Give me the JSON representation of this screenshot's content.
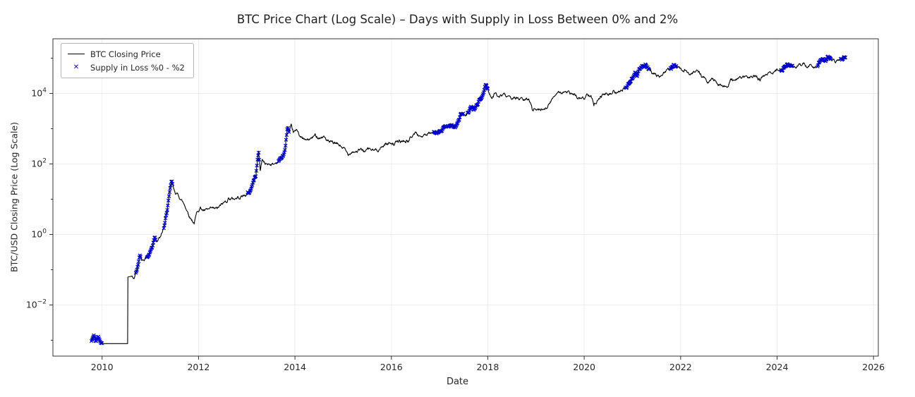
{
  "chart_data": {
    "type": "line",
    "title": "BTC Price Chart (Log Scale) – Days with Supply in Loss Between 0% and 2%",
    "xlabel": "Date",
    "ylabel": "BTC/USD Closing Price (Log Scale)",
    "grid": true,
    "legend_position": "upper-left",
    "x_ticks": [
      2010,
      2012,
      2014,
      2016,
      2018,
      2020,
      2022,
      2024,
      2026
    ],
    "y_ticks_exp": [
      -2,
      0,
      2,
      4
    ],
    "y_minor_decades": [
      -3,
      -2,
      -1,
      0,
      1,
      2,
      3,
      4,
      5
    ],
    "xlim": [
      2008.98,
      2026.1
    ],
    "ylim_log10": [
      -3.45,
      5.55
    ],
    "colors": {
      "line": "#000000",
      "marker": "#0000cc",
      "grid": "#e8e8e8",
      "spine": "#333333",
      "text": "#262626"
    },
    "series": [
      {
        "name": "BTC Closing Price",
        "type": "line",
        "color": "#000000",
        "anchors": [
          [
            2009.78,
            0.00095
          ],
          [
            2009.83,
            0.0014
          ],
          [
            2009.87,
            0.0009
          ],
          [
            2009.92,
            0.0013
          ],
          [
            2009.97,
            0.00085
          ],
          [
            2010.02,
            0.0008
          ],
          [
            2010.53,
            0.0008
          ],
          [
            2010.536,
            0.062
          ],
          [
            2010.6,
            0.065
          ],
          [
            2010.66,
            0.058
          ],
          [
            2010.72,
            0.095
          ],
          [
            2010.78,
            0.24
          ],
          [
            2010.83,
            0.19
          ],
          [
            2010.9,
            0.22
          ],
          [
            2010.97,
            0.27
          ],
          [
            2011.04,
            0.45
          ],
          [
            2011.09,
            0.95
          ],
          [
            2011.13,
            0.72
          ],
          [
            2011.22,
            0.86
          ],
          [
            2011.3,
            1.8
          ],
          [
            2011.37,
            7.5
          ],
          [
            2011.44,
            30
          ],
          [
            2011.49,
            17
          ],
          [
            2011.54,
            14.5
          ],
          [
            2011.62,
            11
          ],
          [
            2011.73,
            6.2
          ],
          [
            2011.83,
            3.1
          ],
          [
            2011.91,
            2.2
          ],
          [
            2011.98,
            4.7
          ],
          [
            2012.04,
            5.9
          ],
          [
            2012.12,
            4.6
          ],
          [
            2012.25,
            4.9
          ],
          [
            2012.38,
            5.1
          ],
          [
            2012.47,
            6.5
          ],
          [
            2012.58,
            8.9
          ],
          [
            2012.63,
            11.2
          ],
          [
            2012.7,
            10.1
          ],
          [
            2012.8,
            11.0
          ],
          [
            2012.9,
            12.4
          ],
          [
            2012.99,
            13.4
          ],
          [
            2013.06,
            15.5
          ],
          [
            2013.12,
            27
          ],
          [
            2013.19,
            49
          ],
          [
            2013.245,
            233
          ],
          [
            2013.28,
            68
          ],
          [
            2013.32,
            140
          ],
          [
            2013.38,
            98
          ],
          [
            2013.47,
            105
          ],
          [
            2013.56,
            97
          ],
          [
            2013.65,
            120
          ],
          [
            2013.73,
            155
          ],
          [
            2013.79,
            210
          ],
          [
            2013.845,
            1120
          ],
          [
            2013.88,
            700
          ],
          [
            2013.92,
            1020
          ],
          [
            2013.97,
            735
          ],
          [
            2014.02,
            810
          ],
          [
            2014.06,
            835
          ],
          [
            2014.13,
            560
          ],
          [
            2014.22,
            450
          ],
          [
            2014.32,
            495
          ],
          [
            2014.42,
            625
          ],
          [
            2014.5,
            590
          ],
          [
            2014.6,
            600
          ],
          [
            2014.72,
            390
          ],
          [
            2014.83,
            365
          ],
          [
            2014.93,
            330
          ],
          [
            2015.02,
            270
          ],
          [
            2015.06,
            215
          ],
          [
            2015.1,
            178
          ],
          [
            2015.18,
            245
          ],
          [
            2015.27,
            236
          ],
          [
            2015.36,
            247
          ],
          [
            2015.46,
            230
          ],
          [
            2015.54,
            263
          ],
          [
            2015.64,
            232
          ],
          [
            2015.73,
            265
          ],
          [
            2015.82,
            310
          ],
          [
            2015.88,
            400
          ],
          [
            2015.92,
            360
          ],
          [
            2015.99,
            432
          ],
          [
            2016.06,
            375
          ],
          [
            2016.14,
            417
          ],
          [
            2016.25,
            435
          ],
          [
            2016.36,
            455
          ],
          [
            2016.45,
            665
          ],
          [
            2016.5,
            770
          ],
          [
            2016.55,
            660
          ],
          [
            2016.63,
            610
          ],
          [
            2016.72,
            640
          ],
          [
            2016.82,
            700
          ],
          [
            2016.9,
            745
          ],
          [
            2016.99,
            965
          ],
          [
            2017.04,
            890
          ],
          [
            2017.1,
            1070
          ],
          [
            2017.16,
            1190
          ],
          [
            2017.22,
            1040
          ],
          [
            2017.3,
            1230
          ],
          [
            2017.37,
            1320
          ],
          [
            2017.44,
            2550
          ],
          [
            2017.49,
            2450
          ],
          [
            2017.54,
            1990
          ],
          [
            2017.6,
            2650
          ],
          [
            2017.66,
            4350
          ],
          [
            2017.7,
            3250
          ],
          [
            2017.76,
            4380
          ],
          [
            2017.82,
            6100
          ],
          [
            2017.87,
            7300
          ],
          [
            2017.92,
            11200
          ],
          [
            2017.96,
            19100
          ],
          [
            2018.0,
            13600
          ],
          [
            2018.04,
            10300
          ],
          [
            2018.09,
            7000
          ],
          [
            2018.16,
            11400
          ],
          [
            2018.24,
            6900
          ],
          [
            2018.31,
            9250
          ],
          [
            2018.4,
            7500
          ],
          [
            2018.48,
            6200
          ],
          [
            2018.56,
            8250
          ],
          [
            2018.64,
            7000
          ],
          [
            2018.74,
            6450
          ],
          [
            2018.85,
            6400
          ],
          [
            2018.89,
            5600
          ],
          [
            2018.92,
            3900
          ],
          [
            2018.99,
            3750
          ],
          [
            2019.08,
            3420
          ],
          [
            2019.18,
            3950
          ],
          [
            2019.28,
            5150
          ],
          [
            2019.37,
            7900
          ],
          [
            2019.46,
            12900
          ],
          [
            2019.52,
            10700
          ],
          [
            2019.57,
            11900
          ],
          [
            2019.65,
            10200
          ],
          [
            2019.74,
            9500
          ],
          [
            2019.82,
            8200
          ],
          [
            2019.91,
            7250
          ],
          [
            2020.0,
            7200
          ],
          [
            2020.07,
            9350
          ],
          [
            2020.14,
            10300
          ],
          [
            2020.2,
            4950
          ],
          [
            2020.27,
            6900
          ],
          [
            2020.34,
            8800
          ],
          [
            2020.41,
            9650
          ],
          [
            2020.49,
            9150
          ],
          [
            2020.56,
            9250
          ],
          [
            2020.62,
            11800
          ],
          [
            2020.69,
            10250
          ],
          [
            2020.76,
            10700
          ],
          [
            2020.83,
            13050
          ],
          [
            2020.88,
            15500
          ],
          [
            2020.93,
            18700
          ],
          [
            2020.98,
            27000
          ],
          [
            2021.02,
            33000
          ],
          [
            2021.06,
            38500
          ],
          [
            2021.09,
            31000
          ],
          [
            2021.14,
            48000
          ],
          [
            2021.19,
            55500
          ],
          [
            2021.24,
            58200
          ],
          [
            2021.285,
            63500
          ],
          [
            2021.33,
            53500
          ],
          [
            2021.37,
            57800
          ],
          [
            2021.41,
            37000
          ],
          [
            2021.46,
            36800
          ],
          [
            2021.52,
            33500
          ],
          [
            2021.56,
            31600
          ],
          [
            2021.61,
            34500
          ],
          [
            2021.67,
            42000
          ],
          [
            2021.72,
            46500
          ],
          [
            2021.77,
            48800
          ],
          [
            2021.81,
            50000
          ],
          [
            2021.86,
            66900
          ],
          [
            2021.9,
            58000
          ],
          [
            2021.94,
            57200
          ],
          [
            2021.99,
            46900
          ],
          [
            2022.04,
            36800
          ],
          [
            2022.09,
            44000
          ],
          [
            2022.14,
            38500
          ],
          [
            2022.21,
            39200
          ],
          [
            2022.27,
            46500
          ],
          [
            2022.33,
            45200
          ],
          [
            2022.39,
            39700
          ],
          [
            2022.44,
            29800
          ],
          [
            2022.5,
            29000
          ],
          [
            2022.54,
            18900
          ],
          [
            2022.59,
            21200
          ],
          [
            2022.64,
            24300
          ],
          [
            2022.71,
            23300
          ],
          [
            2022.78,
            19800
          ],
          [
            2022.83,
            20300
          ],
          [
            2022.88,
            16200
          ],
          [
            2022.93,
            17100
          ],
          [
            2022.99,
            16550
          ],
          [
            2023.04,
            23100
          ],
          [
            2023.09,
            21800
          ],
          [
            2023.16,
            25000
          ],
          [
            2023.21,
            28300
          ],
          [
            2023.27,
            27600
          ],
          [
            2023.32,
            29900
          ],
          [
            2023.4,
            26800
          ],
          [
            2023.46,
            30600
          ],
          [
            2023.52,
            30300
          ],
          [
            2023.57,
            29200
          ],
          [
            2023.64,
            25800
          ],
          [
            2023.71,
            26600
          ],
          [
            2023.77,
            34600
          ],
          [
            2023.84,
            37800
          ],
          [
            2023.92,
            43800
          ],
          [
            2023.99,
            42200
          ],
          [
            2024.04,
            42800
          ],
          [
            2024.09,
            47100
          ],
          [
            2024.15,
            62500
          ],
          [
            2024.2,
            73100
          ],
          [
            2024.24,
            64500
          ],
          [
            2024.29,
            70800
          ],
          [
            2024.35,
            63800
          ],
          [
            2024.4,
            60600
          ],
          [
            2024.46,
            67600
          ],
          [
            2024.52,
            56700
          ],
          [
            2024.57,
            64900
          ],
          [
            2024.62,
            54200
          ],
          [
            2024.66,
            59400
          ],
          [
            2024.71,
            64600
          ],
          [
            2024.76,
            58900
          ],
          [
            2024.81,
            63300
          ],
          [
            2024.85,
            69400
          ],
          [
            2024.88,
            75600
          ],
          [
            2024.91,
            98000
          ],
          [
            2024.96,
            96900
          ],
          [
            2025.0,
            94400
          ],
          [
            2025.04,
            104700
          ],
          [
            2025.08,
            96700
          ],
          [
            2025.13,
            84400
          ],
          [
            2025.18,
            82600
          ],
          [
            2025.23,
            85200
          ],
          [
            2025.28,
            94300
          ],
          [
            2025.33,
            103700
          ],
          [
            2025.37,
            96200
          ],
          [
            2025.41,
            104600
          ]
        ]
      },
      {
        "name": "Supply in Loss %0 - %2",
        "type": "scatter",
        "marker": "x",
        "color": "#0000cc",
        "date_ranges": [
          [
            2009.78,
            2010.0
          ],
          [
            2010.7,
            2010.8
          ],
          [
            2010.93,
            2011.12
          ],
          [
            2011.28,
            2011.46
          ],
          [
            2013.02,
            2013.26
          ],
          [
            2013.66,
            2013.88
          ],
          [
            2016.88,
            2017.12
          ],
          [
            2017.18,
            2017.5
          ],
          [
            2017.58,
            2018.0
          ],
          [
            2020.86,
            2021.34
          ],
          [
            2021.79,
            2021.91
          ],
          [
            2024.08,
            2024.33
          ],
          [
            2024.84,
            2025.12
          ],
          [
            2025.32,
            2025.42
          ]
        ]
      }
    ]
  }
}
